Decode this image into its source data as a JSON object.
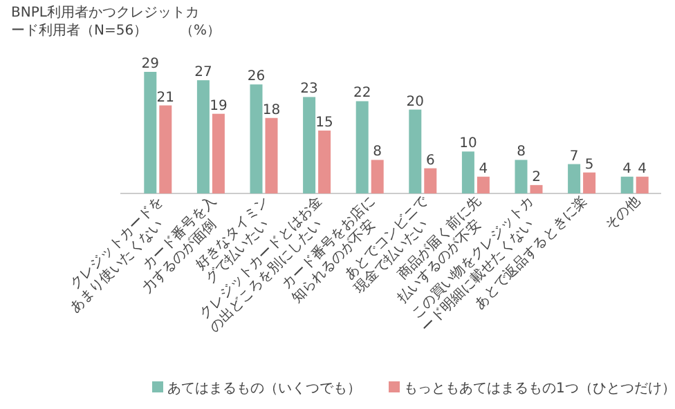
{
  "chart_data": {
    "type": "bar",
    "title": "BNPL利用者かつクレジットカード利用者（N=56）",
    "annotations": [
      "（%）"
    ],
    "categories": [
      "クレジットカードをあまり使いたくない",
      "カード番号を入力するのが面倒",
      "好きなタイミングで払いたい",
      "クレジットカードとはお金の出どころを別にしたい",
      "カード番号をお店に知られるのが不安",
      "あとでコンビニで現金で払いたい",
      "商品が届く前に先払いするのが不安",
      "この買い物をクレジットカード明細に載せたくない",
      "あとで返品するときに楽",
      "その他"
    ],
    "series": [
      {
        "name": "あてはまるもの（いくつでも）",
        "color": "#7fbfb1",
        "values": [
          29,
          27,
          26,
          23,
          22,
          20,
          10,
          8,
          7,
          4
        ]
      },
      {
        "name": "もっともあてはまるもの1つ（ひとつだけ）",
        "color": "#e8908e",
        "values": [
          21,
          19,
          18,
          15,
          8,
          6,
          4,
          2,
          5,
          4
        ]
      }
    ],
    "data_labels": true,
    "legend": "bottom"
  }
}
